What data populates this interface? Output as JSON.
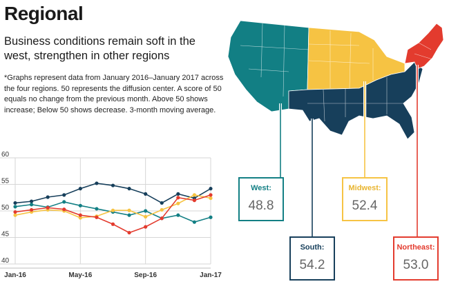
{
  "title": "Regional",
  "subtitle": "Business conditions remain soft in the west, strengthen in other regions",
  "note": "*Graphs represent data from January 2016–January 2017 across the four regions. 50 represents the diffusion center. A score of 50 equals no change from the previous month. Above 50 shows increase; Below 50 shows decrease. 3-month moving average.",
  "colors": {
    "west": "#127f84",
    "south": "#173f5b",
    "midwest": "#f6c343",
    "northeast": "#e33b2e"
  },
  "regions": [
    {
      "key": "west",
      "label": "West:",
      "value": "48.8",
      "color": "#127f84"
    },
    {
      "key": "south",
      "label": "South:",
      "value": "54.2",
      "color": "#173f5b"
    },
    {
      "key": "midwest",
      "label": "Midwest:",
      "value": "52.4",
      "color": "#f6c343"
    },
    {
      "key": "northeast",
      "label": "Northeast:",
      "value": "53.0",
      "color": "#e33b2e"
    }
  ],
  "chart_data": {
    "type": "line",
    "x": [
      "Jan-16",
      "Feb-16",
      "Mar-16",
      "Apr-16",
      "May-16",
      "Jun-16",
      "Jul-16",
      "Aug-16",
      "Sep-16",
      "Oct-16",
      "Nov-16",
      "Dec-16",
      "Jan-17"
    ],
    "xticks": [
      "Jan-16",
      "May-16",
      "Sep-16",
      "Jan-17"
    ],
    "yticks": [
      40,
      45,
      50,
      55,
      60
    ],
    "ylim": [
      40,
      60
    ],
    "grid": true,
    "series": [
      {
        "name": "South",
        "color": "#173f5b",
        "values": [
          51.5,
          51.8,
          52.6,
          53.0,
          54.2,
          55.2,
          54.8,
          54.2,
          53.2,
          51.5,
          53.2,
          52.4,
          54.2
        ]
      },
      {
        "name": "West",
        "color": "#127f84",
        "values": [
          50.8,
          51.2,
          50.7,
          51.7,
          51.0,
          50.4,
          49.8,
          49.2,
          50.0,
          48.6,
          49.2,
          47.9,
          48.8
        ]
      },
      {
        "name": "Midwest",
        "color": "#f6c343",
        "values": [
          49.2,
          49.8,
          50.2,
          50.0,
          48.7,
          49.0,
          50.1,
          50.1,
          48.9,
          50.2,
          51.4,
          53.0,
          52.4
        ]
      },
      {
        "name": "Northeast",
        "color": "#e33b2e",
        "values": [
          49.8,
          50.2,
          50.6,
          50.3,
          49.2,
          48.8,
          47.5,
          45.9,
          47.0,
          48.6,
          52.5,
          52.0,
          53.0
        ]
      }
    ]
  }
}
